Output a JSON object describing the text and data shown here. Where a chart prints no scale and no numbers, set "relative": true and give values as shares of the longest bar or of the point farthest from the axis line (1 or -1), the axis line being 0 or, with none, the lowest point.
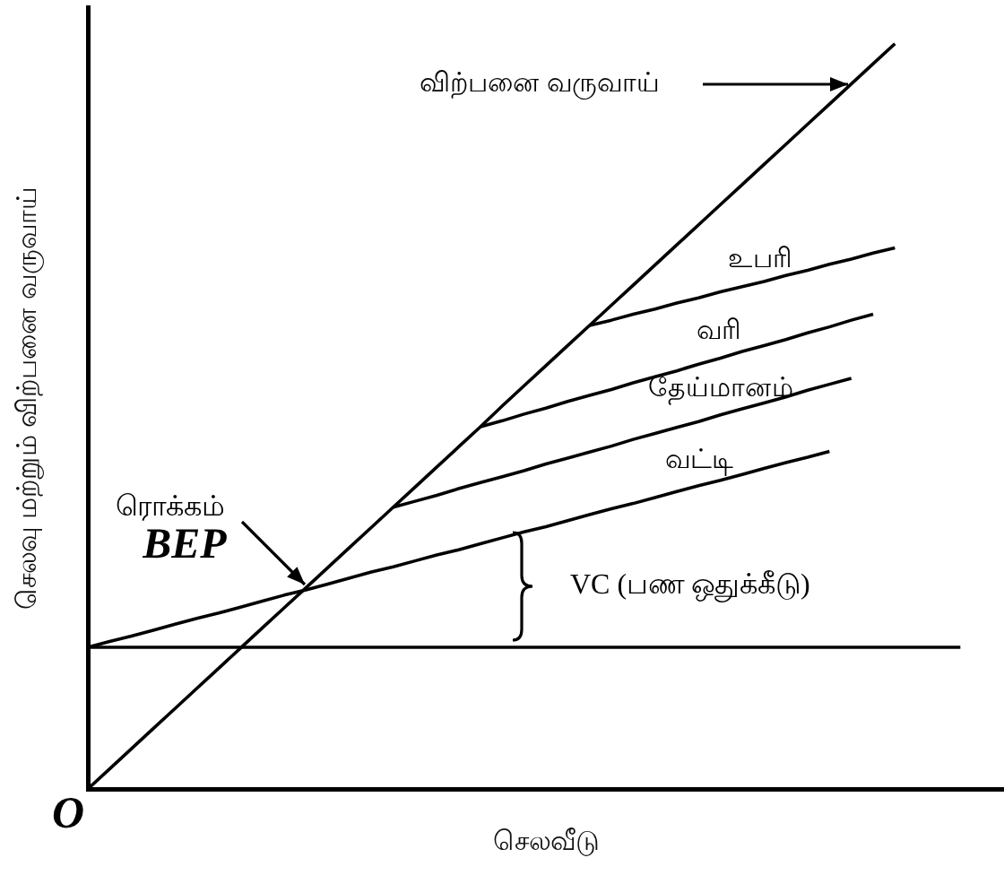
{
  "chart_data": {
    "type": "line",
    "xlabel": "செலவீடு",
    "ylabel": "செலவு மற்றும் விற்பனை வருவாய்",
    "relative": true,
    "tick_labels": false,
    "marker": "none",
    "categories": [
      null,
      null,
      null,
      null,
      null,
      null,
      null,
      null,
      null,
      null,
      null,
      null,
      null,
      null,
      null,
      null,
      null,
      null,
      null,
      null,
      null,
      null,
      null,
      null,
      null,
      null,
      null,
      null,
      null,
      null,
      null,
      null,
      null,
      null,
      null,
      null,
      null,
      null,
      null,
      null,
      null,
      null,
      null
    ],
    "series": [
      {
        "color": "#000000",
        "values": [
          0,
          0.027,
          0.054,
          0.081,
          0.108,
          0.135,
          0.162,
          0.189,
          0.216,
          0.243,
          0.27,
          0.297,
          0.324,
          0.351,
          0.378,
          0.405,
          0.432,
          0.459,
          0.486,
          0.514,
          0.541,
          0.568,
          0.595,
          0.622,
          0.649,
          0.676,
          0.703,
          0.73,
          0.757,
          0.784,
          0.811,
          0.838,
          0.865,
          0.892,
          0.919,
          0.946,
          0.973,
          1,
          null,
          null,
          null,
          null,
          null
        ]
      },
      {
        "color": "#000000",
        "values": [
          0.19,
          0.19,
          0.19,
          0.19,
          0.19,
          0.19,
          0.19,
          0.19,
          0.19,
          0.19,
          0.19,
          0.19,
          0.19,
          0.19,
          0.19,
          0.19,
          0.19,
          0.19,
          0.19,
          0.19,
          0.19,
          0.19,
          0.19,
          0.19,
          0.19,
          0.19,
          0.19,
          0.19,
          0.19,
          0.19,
          0.19,
          0.19,
          0.19,
          0.19,
          0.19,
          0.19,
          0.19,
          0.19,
          0.19,
          0.19,
          0.19,
          null,
          null
        ]
      },
      {
        "color": "#000000",
        "values": [
          0.19,
          0.198,
          0.205,
          0.213,
          0.221,
          0.229,
          0.236,
          0.244,
          0.252,
          0.26,
          0.267,
          0.275,
          0.283,
          0.291,
          0.298,
          0.306,
          0.314,
          0.321,
          0.329,
          0.337,
          0.345,
          0.352,
          0.36,
          0.368,
          0.376,
          0.383,
          0.391,
          0.399,
          0.407,
          0.414,
          0.422,
          0.43,
          0.438,
          0.445,
          0.453,
          null,
          null,
          null,
          null,
          null,
          null,
          null,
          null
        ]
      },
      {
        "color": "#000000",
        "values": [
          null,
          null,
          null,
          null,
          null,
          null,
          null,
          null,
          null,
          null,
          null,
          null,
          null,
          null,
          0.378,
          0.386,
          0.394,
          0.403,
          0.411,
          0.419,
          0.427,
          0.436,
          0.444,
          0.452,
          0.46,
          0.469,
          0.477,
          0.485,
          0.493,
          0.502,
          0.51,
          0.518,
          0.526,
          0.535,
          0.543,
          0.551,
          null,
          null,
          null,
          null,
          null,
          null,
          null
        ]
      },
      {
        "color": "#000000",
        "values": [
          null,
          null,
          null,
          null,
          null,
          null,
          null,
          null,
          null,
          null,
          null,
          null,
          null,
          null,
          null,
          null,
          null,
          null,
          0.486,
          0.494,
          0.503,
          0.511,
          0.52,
          0.528,
          0.536,
          0.545,
          0.553,
          0.561,
          0.57,
          0.578,
          0.587,
          0.595,
          0.603,
          0.612,
          0.62,
          0.629,
          0.637,
          null,
          null,
          null,
          null,
          null,
          null
        ]
      },
      {
        "color": "#000000",
        "values": [
          null,
          null,
          null,
          null,
          null,
          null,
          null,
          null,
          null,
          null,
          null,
          null,
          null,
          null,
          null,
          null,
          null,
          null,
          null,
          null,
          null,
          null,
          null,
          0.622,
          0.629,
          0.637,
          0.644,
          0.652,
          0.659,
          0.667,
          0.674,
          0.681,
          0.689,
          0.696,
          0.704,
          0.711,
          0.719,
          0.726,
          null,
          null,
          null,
          null,
          null
        ]
      }
    ],
    "annotations": [
      "விற்பனை வருவாய்",
      "உபரி",
      "வரி",
      "தேய்மானம்",
      "வட்டி",
      "VC (பண ஒதுக்கீடு)",
      "ரொக்கம்",
      "BEP",
      "O"
    ]
  }
}
